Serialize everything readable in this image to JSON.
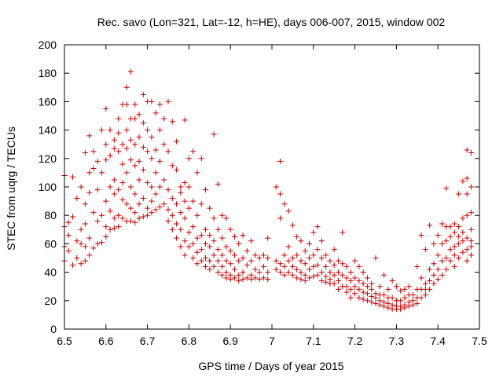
{
  "chart_data": {
    "type": "scatter",
    "title": "Rec. savo (Lon=321, Lat=-12, h=HE), days 006-007, 2015, window 002",
    "xlabel": "GPS time / Days of year 2015",
    "ylabel": "STEC from uqrg / TECUs",
    "xlim": [
      6.5,
      7.5
    ],
    "ylim": [
      0,
      200
    ],
    "xticks": [
      "6.5",
      "6.6",
      "6.7",
      "6.8",
      "6.9",
      "7",
      "7.1",
      "7.2",
      "7.3",
      "7.4",
      "7.5"
    ],
    "yticks": [
      "0",
      "20",
      "40",
      "60",
      "80",
      "100",
      "120",
      "140",
      "160",
      "180",
      "200"
    ],
    "grid": false,
    "marker": "+",
    "color": "#cc0000",
    "points": [
      [
        6.5,
        72
      ],
      [
        6.5,
        58
      ],
      [
        6.5,
        48
      ],
      [
        6.5,
        108
      ],
      [
        6.51,
        75
      ],
      [
        6.51,
        66
      ],
      [
        6.51,
        55
      ],
      [
        6.52,
        45
      ],
      [
        6.52,
        107
      ],
      [
        6.52,
        79
      ],
      [
        6.53,
        92
      ],
      [
        6.53,
        62
      ],
      [
        6.53,
        50
      ],
      [
        6.54,
        100
      ],
      [
        6.54,
        70
      ],
      [
        6.54,
        60
      ],
      [
        6.54,
        46
      ],
      [
        6.55,
        124
      ],
      [
        6.55,
        88
      ],
      [
        6.55,
        74
      ],
      [
        6.55,
        58
      ],
      [
        6.55,
        48
      ],
      [
        6.56,
        110
      ],
      [
        6.56,
        96
      ],
      [
        6.56,
        136
      ],
      [
        6.56,
        64
      ],
      [
        6.56,
        52
      ],
      [
        6.57,
        125
      ],
      [
        6.57,
        113
      ],
      [
        6.57,
        82
      ],
      [
        6.57,
        57
      ],
      [
        6.58,
        118
      ],
      [
        6.58,
        98
      ],
      [
        6.58,
        76
      ],
      [
        6.58,
        60
      ],
      [
        6.59,
        140
      ],
      [
        6.59,
        110
      ],
      [
        6.59,
        80
      ],
      [
        6.59,
        61
      ],
      [
        6.6,
        155
      ],
      [
        6.6,
        130
      ],
      [
        6.6,
        119
      ],
      [
        6.6,
        90
      ],
      [
        6.6,
        72
      ],
      [
        6.6,
        65
      ],
      [
        6.61,
        140
      ],
      [
        6.61,
        122
      ],
      [
        6.61,
        100
      ],
      [
        6.61,
        83
      ],
      [
        6.61,
        70
      ],
      [
        6.62,
        133
      ],
      [
        6.62,
        127
      ],
      [
        6.62,
        105
      ],
      [
        6.62,
        95
      ],
      [
        6.62,
        78
      ],
      [
        6.62,
        71
      ],
      [
        6.63,
        148
      ],
      [
        6.63,
        138
      ],
      [
        6.63,
        125
      ],
      [
        6.63,
        98
      ],
      [
        6.63,
        80
      ],
      [
        6.63,
        72
      ],
      [
        6.64,
        158
      ],
      [
        6.64,
        130
      ],
      [
        6.64,
        116
      ],
      [
        6.64,
        103
      ],
      [
        6.64,
        91
      ],
      [
        6.64,
        78
      ],
      [
        6.65,
        170
      ],
      [
        6.65,
        158
      ],
      [
        6.65,
        140
      ],
      [
        6.65,
        127
      ],
      [
        6.65,
        110
      ],
      [
        6.65,
        88
      ],
      [
        6.65,
        76
      ],
      [
        6.66,
        181
      ],
      [
        6.66,
        148
      ],
      [
        6.66,
        133
      ],
      [
        6.66,
        119
      ],
      [
        6.66,
        100
      ],
      [
        6.66,
        85
      ],
      [
        6.66,
        76
      ],
      [
        6.67,
        158
      ],
      [
        6.67,
        148
      ],
      [
        6.67,
        130
      ],
      [
        6.67,
        115
      ],
      [
        6.67,
        95
      ],
      [
        6.67,
        82
      ],
      [
        6.67,
        75
      ],
      [
        6.68,
        151
      ],
      [
        6.68,
        135
      ],
      [
        6.68,
        118
      ],
      [
        6.68,
        105
      ],
      [
        6.68,
        88
      ],
      [
        6.68,
        78
      ],
      [
        6.69,
        165
      ],
      [
        6.69,
        145
      ],
      [
        6.69,
        128
      ],
      [
        6.69,
        112
      ],
      [
        6.69,
        92
      ],
      [
        6.69,
        79
      ],
      [
        6.7,
        160
      ],
      [
        6.7,
        140
      ],
      [
        6.7,
        125
      ],
      [
        6.7,
        103
      ],
      [
        6.7,
        85
      ],
      [
        6.7,
        80
      ],
      [
        6.71,
        160
      ],
      [
        6.71,
        135
      ],
      [
        6.71,
        120
      ],
      [
        6.71,
        100
      ],
      [
        6.71,
        90
      ],
      [
        6.71,
        82
      ],
      [
        6.72,
        152
      ],
      [
        6.72,
        126
      ],
      [
        6.72,
        110
      ],
      [
        6.72,
        95
      ],
      [
        6.72,
        84
      ],
      [
        6.73,
        158
      ],
      [
        6.73,
        140
      ],
      [
        6.73,
        118
      ],
      [
        6.73,
        100
      ],
      [
        6.73,
        86
      ],
      [
        6.74,
        148
      ],
      [
        6.74,
        130
      ],
      [
        6.74,
        105
      ],
      [
        6.74,
        88
      ],
      [
        6.75,
        160
      ],
      [
        6.75,
        125
      ],
      [
        6.75,
        98
      ],
      [
        6.75,
        84
      ],
      [
        6.75,
        76
      ],
      [
        6.76,
        146
      ],
      [
        6.76,
        115
      ],
      [
        6.76,
        92
      ],
      [
        6.76,
        80
      ],
      [
        6.76,
        70
      ],
      [
        6.77,
        132
      ],
      [
        6.77,
        112
      ],
      [
        6.77,
        88
      ],
      [
        6.77,
        74
      ],
      [
        6.77,
        64
      ],
      [
        6.78,
        100
      ],
      [
        6.78,
        96
      ],
      [
        6.78,
        82
      ],
      [
        6.78,
        70
      ],
      [
        6.78,
        58
      ],
      [
        6.79,
        147
      ],
      [
        6.79,
        103
      ],
      [
        6.79,
        90
      ],
      [
        6.79,
        78
      ],
      [
        6.79,
        62
      ],
      [
        6.79,
        52
      ],
      [
        6.8,
        120
      ],
      [
        6.8,
        100
      ],
      [
        6.8,
        85
      ],
      [
        6.8,
        68
      ],
      [
        6.8,
        58
      ],
      [
        6.81,
        125
      ],
      [
        6.81,
        90
      ],
      [
        6.81,
        72
      ],
      [
        6.81,
        60
      ],
      [
        6.81,
        50
      ],
      [
        6.82,
        110
      ],
      [
        6.82,
        80
      ],
      [
        6.82,
        64
      ],
      [
        6.82,
        54
      ],
      [
        6.82,
        46
      ],
      [
        6.83,
        120
      ],
      [
        6.83,
        88
      ],
      [
        6.83,
        66
      ],
      [
        6.83,
        56
      ],
      [
        6.83,
        48
      ],
      [
        6.84,
        98
      ],
      [
        6.84,
        70
      ],
      [
        6.84,
        60
      ],
      [
        6.84,
        50
      ],
      [
        6.84,
        44
      ],
      [
        6.85,
        85
      ],
      [
        6.85,
        66
      ],
      [
        6.85,
        58
      ],
      [
        6.85,
        48
      ],
      [
        6.85,
        42
      ],
      [
        6.86,
        137
      ],
      [
        6.86,
        78
      ],
      [
        6.86,
        62
      ],
      [
        6.86,
        52
      ],
      [
        6.86,
        44
      ],
      [
        6.87,
        102
      ],
      [
        6.87,
        70
      ],
      [
        6.87,
        56
      ],
      [
        6.87,
        48
      ],
      [
        6.87,
        40
      ],
      [
        6.88,
        80
      ],
      [
        6.88,
        64
      ],
      [
        6.88,
        52
      ],
      [
        6.88,
        44
      ],
      [
        6.88,
        38
      ],
      [
        6.89,
        78
      ],
      [
        6.89,
        58
      ],
      [
        6.89,
        48
      ],
      [
        6.89,
        40
      ],
      [
        6.89,
        36
      ],
      [
        6.9,
        70
      ],
      [
        6.9,
        55
      ],
      [
        6.9,
        46
      ],
      [
        6.9,
        38
      ],
      [
        6.9,
        35
      ],
      [
        6.91,
        65
      ],
      [
        6.91,
        52
      ],
      [
        6.91,
        42
      ],
      [
        6.91,
        36
      ],
      [
        6.92,
        60
      ],
      [
        6.92,
        48
      ],
      [
        6.92,
        38
      ],
      [
        6.92,
        34
      ],
      [
        6.93,
        66
      ],
      [
        6.93,
        50
      ],
      [
        6.93,
        40
      ],
      [
        6.93,
        35
      ],
      [
        6.94,
        55
      ],
      [
        6.94,
        45
      ],
      [
        6.94,
        36
      ],
      [
        6.95,
        62
      ],
      [
        6.95,
        48
      ],
      [
        6.95,
        38
      ],
      [
        6.95,
        35
      ],
      [
        6.96,
        52
      ],
      [
        6.96,
        42
      ],
      [
        6.96,
        36
      ],
      [
        6.97,
        50
      ],
      [
        6.97,
        40
      ],
      [
        6.97,
        35
      ],
      [
        6.98,
        52
      ],
      [
        6.98,
        44
      ],
      [
        6.98,
        36
      ],
      [
        6.99,
        64
      ],
      [
        6.99,
        50
      ],
      [
        6.99,
        40
      ],
      [
        6.99,
        35
      ],
      [
        7.01,
        100
      ],
      [
        7.01,
        48
      ],
      [
        7.01,
        42
      ],
      [
        7.02,
        118
      ],
      [
        7.02,
        95
      ],
      [
        7.02,
        78
      ],
      [
        7.02,
        46
      ],
      [
        7.02,
        40
      ],
      [
        7.03,
        88
      ],
      [
        7.03,
        52
      ],
      [
        7.03,
        44
      ],
      [
        7.03,
        38
      ],
      [
        7.04,
        83
      ],
      [
        7.04,
        58
      ],
      [
        7.04,
        48
      ],
      [
        7.04,
        40
      ],
      [
        7.05,
        73
      ],
      [
        7.05,
        50
      ],
      [
        7.05,
        44
      ],
      [
        7.05,
        38
      ],
      [
        7.06,
        65
      ],
      [
        7.06,
        52
      ],
      [
        7.06,
        42
      ],
      [
        7.06,
        36
      ],
      [
        7.07,
        62
      ],
      [
        7.07,
        48
      ],
      [
        7.07,
        40
      ],
      [
        7.07,
        35
      ],
      [
        7.08,
        55
      ],
      [
        7.08,
        46
      ],
      [
        7.08,
        38
      ],
      [
        7.08,
        34
      ],
      [
        7.09,
        60
      ],
      [
        7.09,
        50
      ],
      [
        7.09,
        42
      ],
      [
        7.09,
        36
      ],
      [
        7.1,
        68
      ],
      [
        7.1,
        52
      ],
      [
        7.1,
        44
      ],
      [
        7.1,
        37
      ],
      [
        7.11,
        72
      ],
      [
        7.11,
        56
      ],
      [
        7.11,
        45
      ],
      [
        7.11,
        38
      ],
      [
        7.12,
        62
      ],
      [
        7.12,
        50
      ],
      [
        7.12,
        40
      ],
      [
        7.12,
        34
      ],
      [
        7.13,
        52
      ],
      [
        7.13,
        44
      ],
      [
        7.13,
        37
      ],
      [
        7.13,
        33
      ],
      [
        7.14,
        48
      ],
      [
        7.14,
        40
      ],
      [
        7.14,
        35
      ],
      [
        7.14,
        32
      ],
      [
        7.15,
        56
      ],
      [
        7.15,
        45
      ],
      [
        7.15,
        38
      ],
      [
        7.15,
        32
      ],
      [
        7.16,
        48
      ],
      [
        7.16,
        40
      ],
      [
        7.16,
        34
      ],
      [
        7.16,
        28
      ],
      [
        7.17,
        68
      ],
      [
        7.17,
        46
      ],
      [
        7.17,
        38
      ],
      [
        7.17,
        30
      ],
      [
        7.18,
        44
      ],
      [
        7.18,
        36
      ],
      [
        7.18,
        30
      ],
      [
        7.18,
        26
      ],
      [
        7.19,
        40
      ],
      [
        7.19,
        34
      ],
      [
        7.19,
        28
      ],
      [
        7.19,
        22
      ],
      [
        7.2,
        48
      ],
      [
        7.2,
        36
      ],
      [
        7.2,
        30
      ],
      [
        7.2,
        25
      ],
      [
        7.21,
        44
      ],
      [
        7.21,
        34
      ],
      [
        7.21,
        28
      ],
      [
        7.21,
        22
      ],
      [
        7.22,
        40
      ],
      [
        7.22,
        32
      ],
      [
        7.22,
        26
      ],
      [
        7.22,
        21
      ],
      [
        7.23,
        36
      ],
      [
        7.23,
        30
      ],
      [
        7.23,
        25
      ],
      [
        7.23,
        20
      ],
      [
        7.24,
        32
      ],
      [
        7.24,
        28
      ],
      [
        7.24,
        23
      ],
      [
        7.24,
        19
      ],
      [
        7.25,
        50
      ],
      [
        7.25,
        25
      ],
      [
        7.25,
        22
      ],
      [
        7.25,
        18
      ],
      [
        7.26,
        30
      ],
      [
        7.26,
        24
      ],
      [
        7.26,
        20
      ],
      [
        7.26,
        17
      ],
      [
        7.27,
        38
      ],
      [
        7.27,
        24
      ],
      [
        7.27,
        19
      ],
      [
        7.27,
        16
      ],
      [
        7.28,
        28
      ],
      [
        7.28,
        22
      ],
      [
        7.28,
        18
      ],
      [
        7.28,
        15
      ],
      [
        7.29,
        34
      ],
      [
        7.29,
        22
      ],
      [
        7.29,
        17
      ],
      [
        7.29,
        14
      ],
      [
        7.3,
        30
      ],
      [
        7.3,
        20
      ],
      [
        7.3,
        16
      ],
      [
        7.3,
        14
      ],
      [
        7.31,
        27
      ],
      [
        7.31,
        20
      ],
      [
        7.31,
        16
      ],
      [
        7.31,
        14
      ],
      [
        7.32,
        28
      ],
      [
        7.32,
        22
      ],
      [
        7.32,
        17
      ],
      [
        7.32,
        15
      ],
      [
        7.33,
        30
      ],
      [
        7.33,
        24
      ],
      [
        7.33,
        19
      ],
      [
        7.33,
        16
      ],
      [
        7.34,
        24
      ],
      [
        7.34,
        20
      ],
      [
        7.34,
        17
      ],
      [
        7.35,
        44
      ],
      [
        7.35,
        28
      ],
      [
        7.35,
        22
      ],
      [
        7.35,
        18
      ],
      [
        7.36,
        66
      ],
      [
        7.36,
        36
      ],
      [
        7.36,
        28
      ],
      [
        7.36,
        22
      ],
      [
        7.37,
        56
      ],
      [
        7.37,
        32
      ],
      [
        7.37,
        28
      ],
      [
        7.37,
        24
      ],
      [
        7.38,
        73
      ],
      [
        7.38,
        42
      ],
      [
        7.38,
        34
      ],
      [
        7.38,
        28
      ],
      [
        7.39,
        60
      ],
      [
        7.39,
        46
      ],
      [
        7.39,
        38
      ],
      [
        7.39,
        32
      ],
      [
        7.4,
        66
      ],
      [
        7.4,
        52
      ],
      [
        7.4,
        42
      ],
      [
        7.4,
        35
      ],
      [
        7.41,
        74
      ],
      [
        7.41,
        60
      ],
      [
        7.41,
        48
      ],
      [
        7.41,
        38
      ],
      [
        7.42,
        99
      ],
      [
        7.42,
        72
      ],
      [
        7.42,
        62
      ],
      [
        7.42,
        50
      ],
      [
        7.42,
        42
      ],
      [
        7.43,
        72
      ],
      [
        7.43,
        65
      ],
      [
        7.43,
        56
      ],
      [
        7.43,
        48
      ],
      [
        7.44,
        74
      ],
      [
        7.44,
        68
      ],
      [
        7.44,
        58
      ],
      [
        7.44,
        52
      ],
      [
        7.44,
        44
      ],
      [
        7.45,
        95
      ],
      [
        7.45,
        72
      ],
      [
        7.45,
        65
      ],
      [
        7.45,
        60
      ],
      [
        7.45,
        50
      ],
      [
        7.46,
        104
      ],
      [
        7.46,
        78
      ],
      [
        7.46,
        68
      ],
      [
        7.46,
        62
      ],
      [
        7.46,
        54
      ],
      [
        7.47,
        126
      ],
      [
        7.47,
        106
      ],
      [
        7.47,
        95
      ],
      [
        7.47,
        80
      ],
      [
        7.47,
        64
      ],
      [
        7.47,
        56
      ],
      [
        7.47,
        48
      ],
      [
        7.48,
        124
      ],
      [
        7.48,
        100
      ],
      [
        7.48,
        82
      ],
      [
        7.48,
        70
      ],
      [
        7.48,
        62
      ],
      [
        7.48,
        58
      ],
      [
        7.48,
        52
      ]
    ]
  }
}
